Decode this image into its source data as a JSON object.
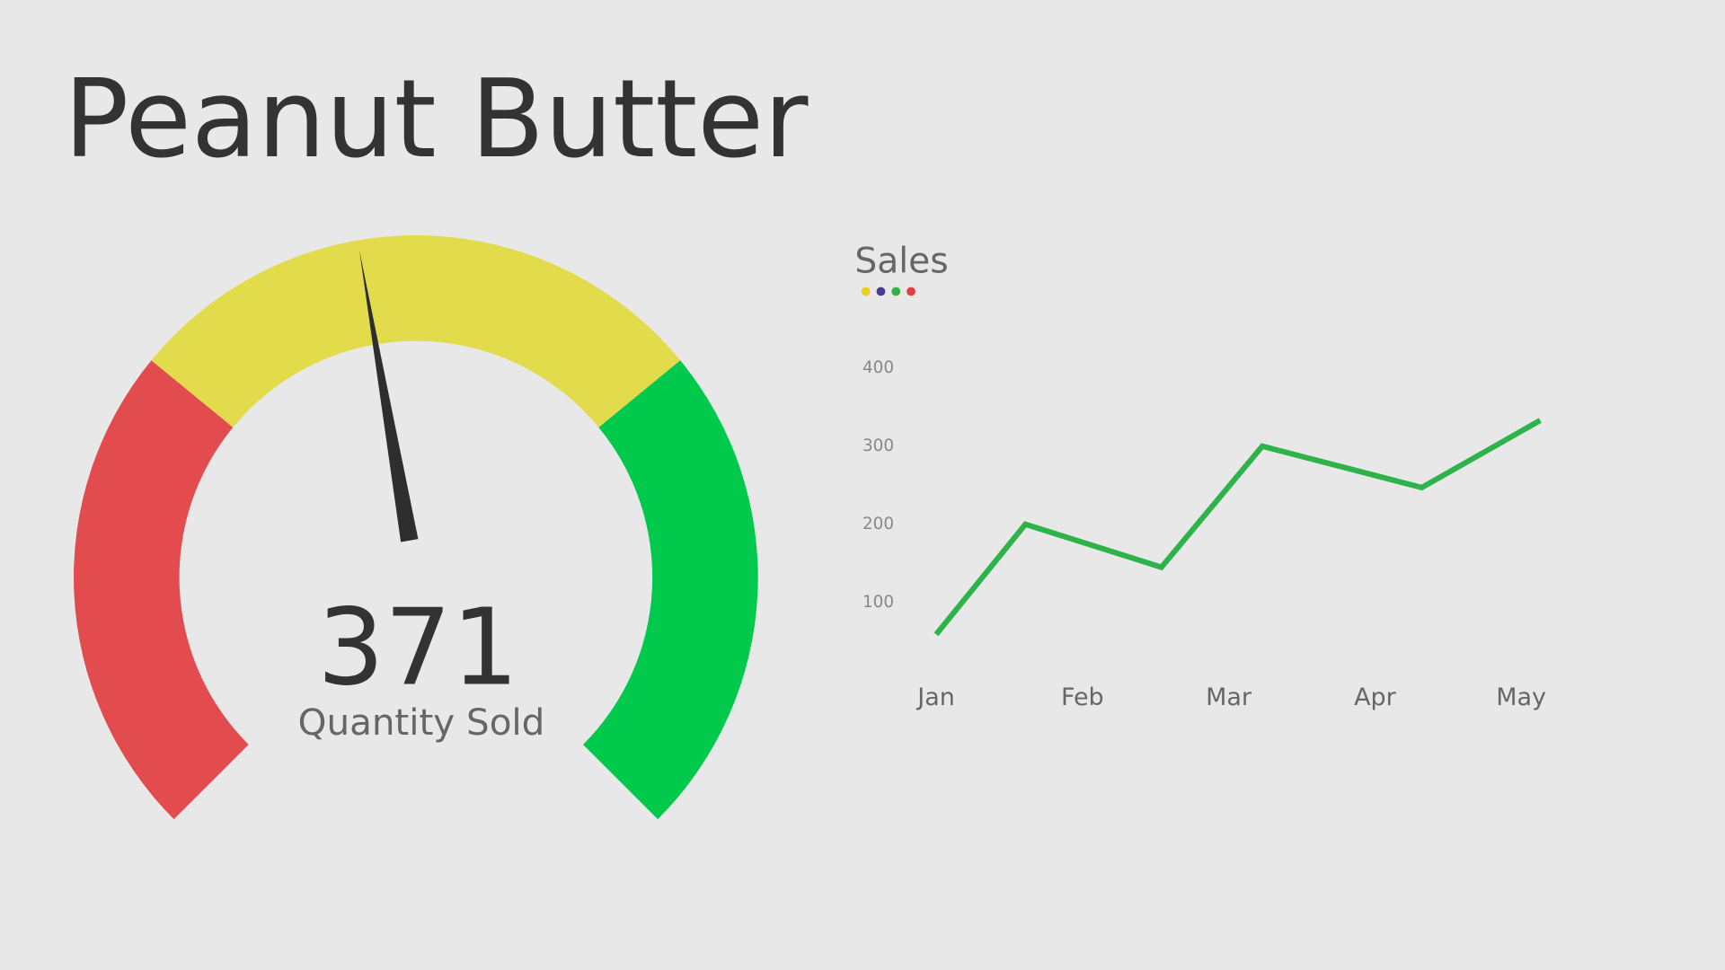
{
  "title": "Peanut Butter",
  "chart_data": [
    {
      "type": "gauge",
      "value": 371,
      "label": "Quantity Sold",
      "range": [
        0,
        800
      ],
      "bands": [
        {
          "from": 0,
          "to": 250,
          "color": "#e34c4f"
        },
        {
          "from": 250,
          "to": 550,
          "color": "#e2db4c"
        },
        {
          "from": 550,
          "to": 800,
          "color": "#00c94b"
        }
      ],
      "needle_color": "#2e2e2e"
    },
    {
      "type": "line",
      "title": "Sales",
      "legend_colors": [
        "#e8d020",
        "#4b3a8c",
        "#2fb34a",
        "#e04040"
      ],
      "x": [
        0,
        0.61,
        1.54,
        2.23,
        3.32,
        4.13
      ],
      "xlim": [
        0,
        4.13
      ],
      "xticks": [
        {
          "value": 0,
          "label": "Jan"
        },
        {
          "value": 1,
          "label": "Feb"
        },
        {
          "value": 2,
          "label": "Mar"
        },
        {
          "value": 3,
          "label": "Apr"
        },
        {
          "value": 4,
          "label": "May"
        }
      ],
      "series": [
        {
          "color": "#2db34a",
          "values": [
            58,
            199,
            144,
            299,
            246,
            332
          ]
        }
      ],
      "ylim": [
        0,
        400
      ],
      "yticks": [
        100,
        200,
        300,
        400
      ],
      "grid": false
    }
  ]
}
